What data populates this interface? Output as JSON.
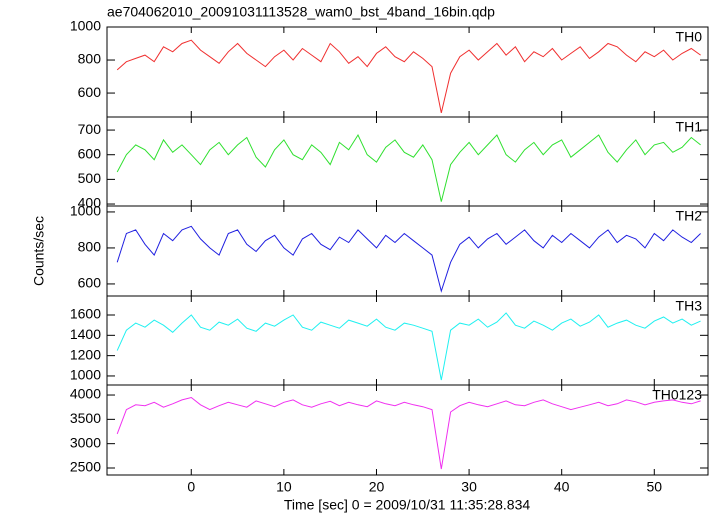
{
  "chart_data": [
    {
      "type": "line",
      "title": "ae704062010_20091031113528_wam0_bst_4band_16bin.qdp",
      "x": [
        -8,
        -7,
        -6,
        -5,
        -4,
        -3,
        -2,
        -1,
        0,
        1,
        2,
        3,
        4,
        5,
        6,
        7,
        8,
        9,
        10,
        11,
        12,
        13,
        14,
        15,
        16,
        17,
        18,
        19,
        20,
        21,
        22,
        23,
        24,
        25,
        26,
        27,
        28,
        29,
        30,
        31,
        32,
        33,
        34,
        35,
        36,
        37,
        38,
        39,
        40,
        41,
        42,
        43,
        44,
        45,
        46,
        47,
        48,
        49,
        50,
        51,
        52,
        53,
        54,
        55
      ],
      "series": [
        {
          "name": "TH0",
          "color": "#f03030",
          "values": [
            740,
            790,
            810,
            830,
            790,
            880,
            850,
            900,
            920,
            860,
            820,
            780,
            850,
            900,
            840,
            800,
            760,
            820,
            860,
            800,
            870,
            830,
            790,
            900,
            850,
            780,
            820,
            760,
            840,
            880,
            820,
            790,
            850,
            810,
            760,
            480,
            720,
            820,
            860,
            800,
            850,
            900,
            830,
            880,
            790,
            850,
            820,
            870,
            800,
            840,
            880,
            810,
            850,
            900,
            880,
            830,
            790,
            850,
            820,
            860,
            800,
            840,
            870,
            830
          ]
        }
      ],
      "xlim": [
        -9.1,
        55.8
      ],
      "xticks": [
        0,
        10,
        20,
        30,
        40,
        50
      ],
      "ylim": [
        455,
        1000
      ],
      "yticks": [
        600,
        800,
        1000
      ]
    },
    {
      "type": "line",
      "x": [
        -8,
        -7,
        -6,
        -5,
        -4,
        -3,
        -2,
        -1,
        0,
        1,
        2,
        3,
        4,
        5,
        6,
        7,
        8,
        9,
        10,
        11,
        12,
        13,
        14,
        15,
        16,
        17,
        18,
        19,
        20,
        21,
        22,
        23,
        24,
        25,
        26,
        27,
        28,
        29,
        30,
        31,
        32,
        33,
        34,
        35,
        36,
        37,
        38,
        39,
        40,
        41,
        42,
        43,
        44,
        45,
        46,
        47,
        48,
        49,
        50,
        51,
        52,
        53,
        54,
        55
      ],
      "series": [
        {
          "name": "TH1",
          "color": "#30e030",
          "values": [
            530,
            600,
            640,
            620,
            580,
            660,
            610,
            640,
            600,
            560,
            620,
            650,
            600,
            640,
            670,
            590,
            550,
            620,
            660,
            600,
            580,
            640,
            610,
            560,
            650,
            620,
            680,
            600,
            570,
            630,
            660,
            610,
            590,
            640,
            580,
            410,
            560,
            610,
            650,
            600,
            640,
            680,
            600,
            570,
            620,
            650,
            600,
            640,
            660,
            590,
            620,
            650,
            680,
            610,
            570,
            620,
            660,
            600,
            640,
            650,
            610,
            630,
            670,
            640
          ]
        }
      ],
      "xlim": [
        -9.1,
        55.8
      ],
      "xticks": [
        0,
        10,
        20,
        30,
        40,
        50
      ],
      "ylim": [
        392,
        753
      ],
      "yticks": [
        400,
        500,
        600,
        700
      ]
    },
    {
      "type": "line",
      "ylabel": "Counts/sec",
      "x": [
        -8,
        -7,
        -6,
        -5,
        -4,
        -3,
        -2,
        -1,
        0,
        1,
        2,
        3,
        4,
        5,
        6,
        7,
        8,
        9,
        10,
        11,
        12,
        13,
        14,
        15,
        16,
        17,
        18,
        19,
        20,
        21,
        22,
        23,
        24,
        25,
        26,
        27,
        28,
        29,
        30,
        31,
        32,
        33,
        34,
        35,
        36,
        37,
        38,
        39,
        40,
        41,
        42,
        43,
        44,
        45,
        46,
        47,
        48,
        49,
        50,
        51,
        52,
        53,
        54,
        55
      ],
      "series": [
        {
          "name": "TH2",
          "color": "#2020e0",
          "values": [
            720,
            880,
            900,
            820,
            760,
            880,
            840,
            900,
            920,
            850,
            800,
            760,
            880,
            900,
            820,
            780,
            840,
            870,
            800,
            760,
            850,
            880,
            820,
            790,
            860,
            830,
            900,
            850,
            800,
            870,
            830,
            880,
            840,
            800,
            760,
            560,
            720,
            820,
            860,
            800,
            850,
            880,
            820,
            860,
            900,
            840,
            800,
            870,
            830,
            880,
            840,
            800,
            860,
            900,
            830,
            870,
            850,
            800,
            880,
            840,
            900,
            860,
            830,
            880
          ]
        }
      ],
      "xlim": [
        -9.1,
        55.8
      ],
      "xticks": [
        0,
        10,
        20,
        30,
        40,
        50
      ],
      "ylim": [
        533,
        1033
      ],
      "yticks": [
        600,
        800,
        1000
      ]
    },
    {
      "type": "line",
      "x": [
        -8,
        -7,
        -6,
        -5,
        -4,
        -3,
        -2,
        -1,
        0,
        1,
        2,
        3,
        4,
        5,
        6,
        7,
        8,
        9,
        10,
        11,
        12,
        13,
        14,
        15,
        16,
        17,
        18,
        19,
        20,
        21,
        22,
        23,
        24,
        25,
        26,
        27,
        28,
        29,
        30,
        31,
        32,
        33,
        34,
        35,
        36,
        37,
        38,
        39,
        40,
        41,
        42,
        43,
        44,
        45,
        46,
        47,
        48,
        49,
        50,
        51,
        52,
        53,
        54,
        55
      ],
      "series": [
        {
          "name": "TH3",
          "color": "#20f0f0",
          "values": [
            1250,
            1450,
            1520,
            1480,
            1550,
            1500,
            1430,
            1520,
            1600,
            1480,
            1450,
            1530,
            1500,
            1560,
            1470,
            1440,
            1520,
            1490,
            1550,
            1600,
            1480,
            1450,
            1530,
            1500,
            1470,
            1550,
            1520,
            1490,
            1560,
            1480,
            1450,
            1520,
            1500,
            1470,
            1440,
            960,
            1450,
            1520,
            1500,
            1560,
            1480,
            1530,
            1620,
            1500,
            1470,
            1540,
            1500,
            1450,
            1520,
            1560,
            1490,
            1530,
            1600,
            1480,
            1520,
            1550,
            1500,
            1470,
            1540,
            1580,
            1520,
            1560,
            1500,
            1540
          ]
        }
      ],
      "xlim": [
        -9.1,
        55.8
      ],
      "xticks": [
        0,
        10,
        20,
        30,
        40,
        50
      ],
      "ylim": [
        911,
        1787
      ],
      "yticks": [
        1000,
        1200,
        1400,
        1600
      ]
    },
    {
      "type": "line",
      "xlabel": "Time [sec] 0 = 2009/10/31 11:35:28.834",
      "x": [
        -8,
        -7,
        -6,
        -5,
        -4,
        -3,
        -2,
        -1,
        0,
        1,
        2,
        3,
        4,
        5,
        6,
        7,
        8,
        9,
        10,
        11,
        12,
        13,
        14,
        15,
        16,
        17,
        18,
        19,
        20,
        21,
        22,
        23,
        24,
        25,
        26,
        27,
        28,
        29,
        30,
        31,
        32,
        33,
        34,
        35,
        36,
        37,
        38,
        39,
        40,
        41,
        42,
        43,
        44,
        45,
        46,
        47,
        48,
        49,
        50,
        51,
        52,
        53,
        54,
        55
      ],
      "series": [
        {
          "name": "TH0123",
          "color": "#f030f0",
          "values": [
            3200,
            3700,
            3800,
            3780,
            3850,
            3750,
            3820,
            3900,
            3950,
            3800,
            3700,
            3780,
            3850,
            3800,
            3750,
            3880,
            3820,
            3760,
            3850,
            3900,
            3800,
            3750,
            3820,
            3870,
            3780,
            3850,
            3800,
            3760,
            3880,
            3820,
            3780,
            3850,
            3800,
            3760,
            3700,
            2480,
            3650,
            3780,
            3850,
            3800,
            3760,
            3820,
            3880,
            3800,
            3780,
            3850,
            3900,
            3820,
            3760,
            3700,
            3750,
            3800,
            3850,
            3780,
            3820,
            3900,
            3860,
            3800,
            3850,
            3880,
            3900,
            3850,
            3820,
            3880
          ]
        }
      ],
      "xlim": [
        -9.1,
        55.8
      ],
      "xticks": [
        0,
        10,
        20,
        30,
        40,
        50
      ],
      "ylim": [
        2356,
        4206
      ],
      "yticks": [
        2500,
        3000,
        3500,
        4000
      ]
    }
  ]
}
